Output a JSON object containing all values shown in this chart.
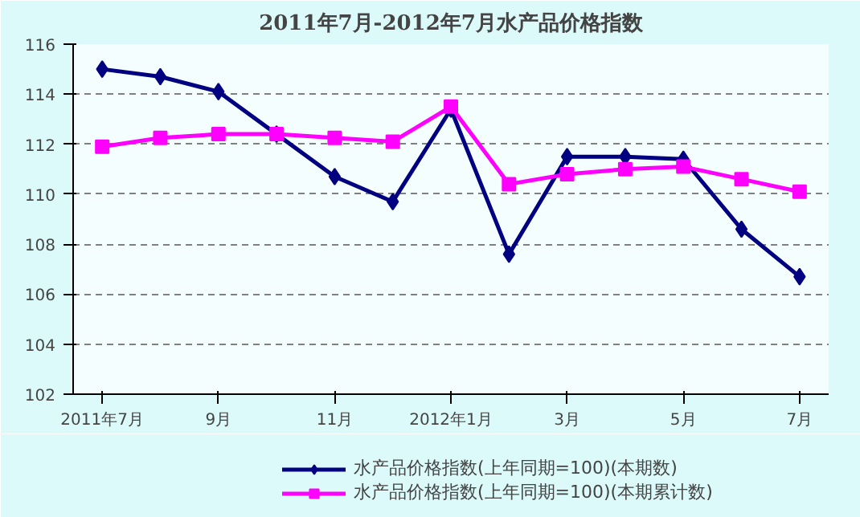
{
  "chart_data": {
    "type": "line",
    "title": "2011年7月-2012年7月水产品价格指数",
    "categories": [
      "2011年7月",
      null,
      "9月",
      null,
      "11月",
      null,
      "2012年1月",
      null,
      "3月",
      null,
      "5月",
      null,
      "7月"
    ],
    "series": [
      {
        "name": "水产品价格指数(上年同期=100)(本期数)",
        "color": "#000080",
        "marker": "diamond",
        "values": [
          115.0,
          114.7,
          114.1,
          112.4,
          110.7,
          109.7,
          113.4,
          107.6,
          111.5,
          111.5,
          111.4,
          108.6,
          106.7
        ]
      },
      {
        "name": "水产品价格指数(上年同期=100)(本期累计数)",
        "color": "#ff00ff",
        "marker": "square",
        "values": [
          111.9,
          112.25,
          112.4,
          112.4,
          112.25,
          112.1,
          113.5,
          110.4,
          110.8,
          111.0,
          111.1,
          110.6,
          110.1
        ]
      }
    ],
    "ylim": [
      102,
      116
    ],
    "yticks": [
      102,
      104,
      106,
      108,
      110,
      112,
      114,
      116
    ],
    "grid": "y",
    "legend": "bottom",
    "line_style": "solid"
  }
}
